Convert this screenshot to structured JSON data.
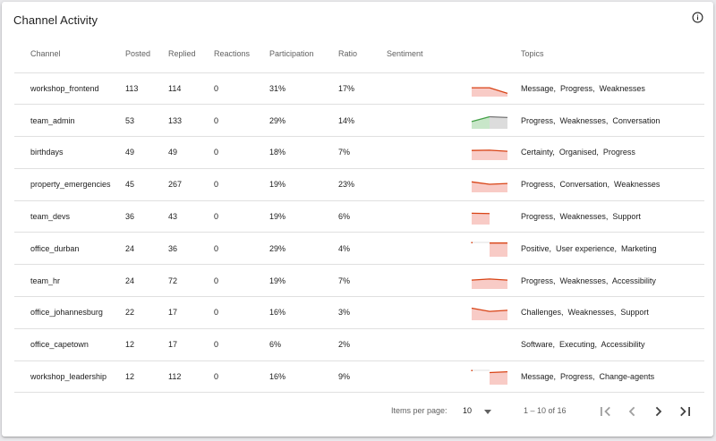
{
  "card": {
    "title": "Channel Activity",
    "info_icon": "info-circle-icon"
  },
  "table": {
    "columns": [
      "Channel",
      "Posted",
      "Replied",
      "Reactions",
      "Participation",
      "Ratio",
      "Sentiment",
      "",
      "Topics"
    ],
    "rows": [
      {
        "channel": "workshop_frontend",
        "posted": "113",
        "replied": "114",
        "reactions": "0",
        "participation": "31%",
        "ratio": "17%",
        "sentiment": [
          0.55,
          0.55,
          0.2
        ],
        "sentiment_start": 0,
        "sentiment_color": "red",
        "topics": "Message,  Progress,  Weaknesses"
      },
      {
        "channel": "team_admin",
        "posted": "53",
        "replied": "133",
        "reactions": "0",
        "participation": "29%",
        "ratio": "14%",
        "sentiment": [
          0.45,
          0.75,
          0.7
        ],
        "sentiment_start": 0,
        "sentiment_color": "mixed",
        "topics": "Progress,  Weaknesses,  Conversation"
      },
      {
        "channel": "birthdays",
        "posted": "49",
        "replied": "49",
        "reactions": "0",
        "participation": "18%",
        "ratio": "7%",
        "sentiment": [
          0.6,
          0.62,
          0.55
        ],
        "sentiment_start": 0,
        "sentiment_color": "red",
        "topics": "Certainty,  Organised,  Progress"
      },
      {
        "channel": "property_emergencies",
        "posted": "45",
        "replied": "267",
        "reactions": "0",
        "participation": "19%",
        "ratio": "23%",
        "sentiment": [
          0.65,
          0.5,
          0.55
        ],
        "sentiment_start": 0,
        "sentiment_color": "red",
        "topics": "Progress,  Conversation,  Weaknesses"
      },
      {
        "channel": "team_devs",
        "posted": "36",
        "replied": "43",
        "reactions": "0",
        "participation": "19%",
        "ratio": "6%",
        "sentiment": [
          0.7,
          0.68
        ],
        "sentiment_start": 0,
        "sentiment_color": "red",
        "topics": "Progress,  Weaknesses,  Support"
      },
      {
        "channel": "office_durban",
        "posted": "24",
        "replied": "36",
        "reactions": "0",
        "participation": "29%",
        "ratio": "4%",
        "sentiment": [
          0.85,
          0.85
        ],
        "sentiment_start": 1,
        "sentiment_color": "red",
        "topics": "Positive,  User experience,  Marketing"
      },
      {
        "channel": "team_hr",
        "posted": "24",
        "replied": "72",
        "reactions": "0",
        "participation": "19%",
        "ratio": "7%",
        "sentiment": [
          0.55,
          0.62,
          0.55
        ],
        "sentiment_start": 0,
        "sentiment_color": "red",
        "topics": "Progress,  Weaknesses,  Accessibility"
      },
      {
        "channel": "office_johannesburg",
        "posted": "22",
        "replied": "17",
        "reactions": "0",
        "participation": "16%",
        "ratio": "3%",
        "sentiment": [
          0.75,
          0.55,
          0.62
        ],
        "sentiment_start": 0,
        "sentiment_color": "red",
        "topics": "Challenges,  Weaknesses,  Support"
      },
      {
        "channel": "office_capetown",
        "posted": "12",
        "replied": "17",
        "reactions": "0",
        "participation": "6%",
        "ratio": "2%",
        "sentiment": [],
        "sentiment_start": 0,
        "sentiment_color": "red",
        "topics": "Software,  Executing,  Accessibility"
      },
      {
        "channel": "workshop_leadership",
        "posted": "12",
        "replied": "112",
        "reactions": "0",
        "participation": "16%",
        "ratio": "9%",
        "sentiment": [
          0.75,
          0.8
        ],
        "sentiment_start": 1,
        "sentiment_color": "red",
        "topics": "Message,  Progress,  Change-agents"
      }
    ]
  },
  "paginator": {
    "items_per_page_label": "Items per page:",
    "items_per_page_value": "10",
    "range_label": "1 – 10 of 16",
    "first_icon": "first-page-icon",
    "prev_icon": "chevron-left-icon",
    "next_icon": "chevron-right-icon",
    "last_icon": "last-page-icon"
  },
  "colors": {
    "negative_line": "#d84315",
    "negative_fill": "#f8cbc6",
    "positive_line": "#43a047",
    "positive_fill": "#c8e6c9",
    "neutral_line": "#757575",
    "neutral_fill": "#dcdcdc",
    "divider": "#e0e0e0"
  }
}
